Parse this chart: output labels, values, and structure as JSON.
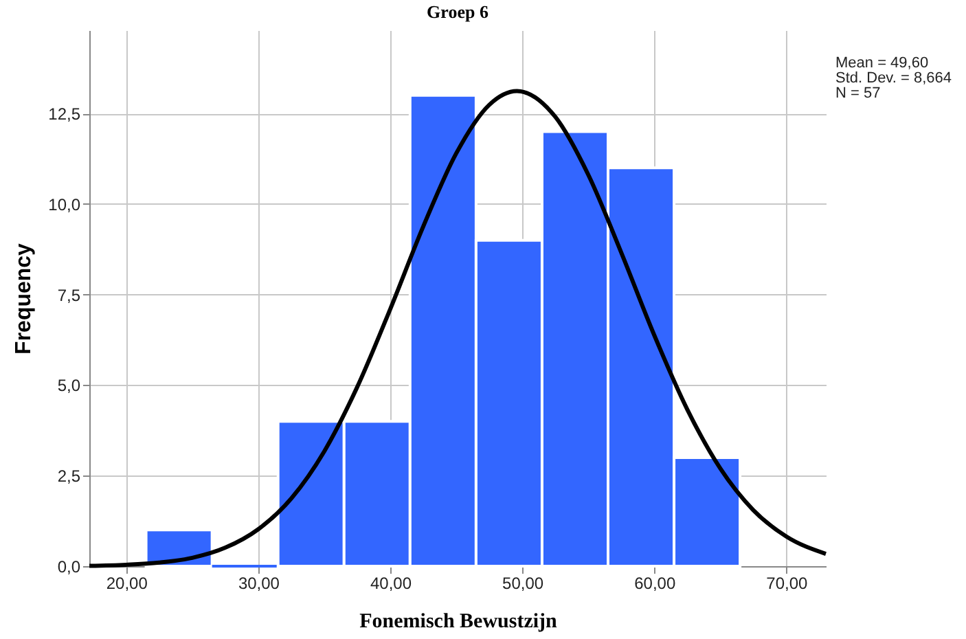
{
  "chart_data": {
    "type": "histogram",
    "title": "Groep 6",
    "xlabel": "Fonemisch Bewustzijn",
    "ylabel": "Frequency",
    "bins": [
      21.5,
      26.5,
      31.5,
      36.5,
      41.5,
      46.5,
      51.5,
      56.5,
      61.5,
      66.5
    ],
    "values": [
      1,
      0,
      4,
      4,
      13,
      9,
      12,
      11,
      3
    ],
    "color": "#3366ff",
    "series": [
      {
        "type": "line",
        "color": "#000000",
        "x": [
          17.2,
          20,
          22.5,
          25,
          27.5,
          30,
          32.5,
          35,
          37.5,
          40,
          42.5,
          45,
          47.5,
          49.6,
          52.5,
          55,
          57.5,
          60,
          62.5,
          65,
          67.5,
          70,
          73
        ],
        "values": [
          0.01,
          0.04,
          0.1,
          0.23,
          0.51,
          1.02,
          1.87,
          3.17,
          4.95,
          7.1,
          9.38,
          11.4,
          12.74,
          13.12,
          12.41,
          10.81,
          8.66,
          6.38,
          4.33,
          2.7,
          1.55,
          0.82,
          0.34
        ]
      }
    ],
    "xlim": [
      17.2,
      73
    ],
    "ylim": [
      0,
      14.8
    ],
    "xticks": [
      {
        "value": 20,
        "label": "20,00"
      },
      {
        "value": 30,
        "label": "30,00"
      },
      {
        "value": 40,
        "label": "40,00"
      },
      {
        "value": 50,
        "label": "50,00"
      },
      {
        "value": 60,
        "label": "60,00"
      },
      {
        "value": 70,
        "label": "70,00"
      }
    ],
    "yticks": [
      {
        "value": 0,
        "label": "0,0"
      },
      {
        "value": 2.5,
        "label": "2,5"
      },
      {
        "value": 5,
        "label": "5,0"
      },
      {
        "value": 7.5,
        "label": "7,5"
      },
      {
        "value": 10,
        "label": "10,0"
      },
      {
        "value": 12.5,
        "label": "12,5"
      }
    ],
    "grid": true,
    "annotations": [
      "Mean = 49,60",
      "Std. Dev. = 8,664",
      "N = 57"
    ]
  }
}
